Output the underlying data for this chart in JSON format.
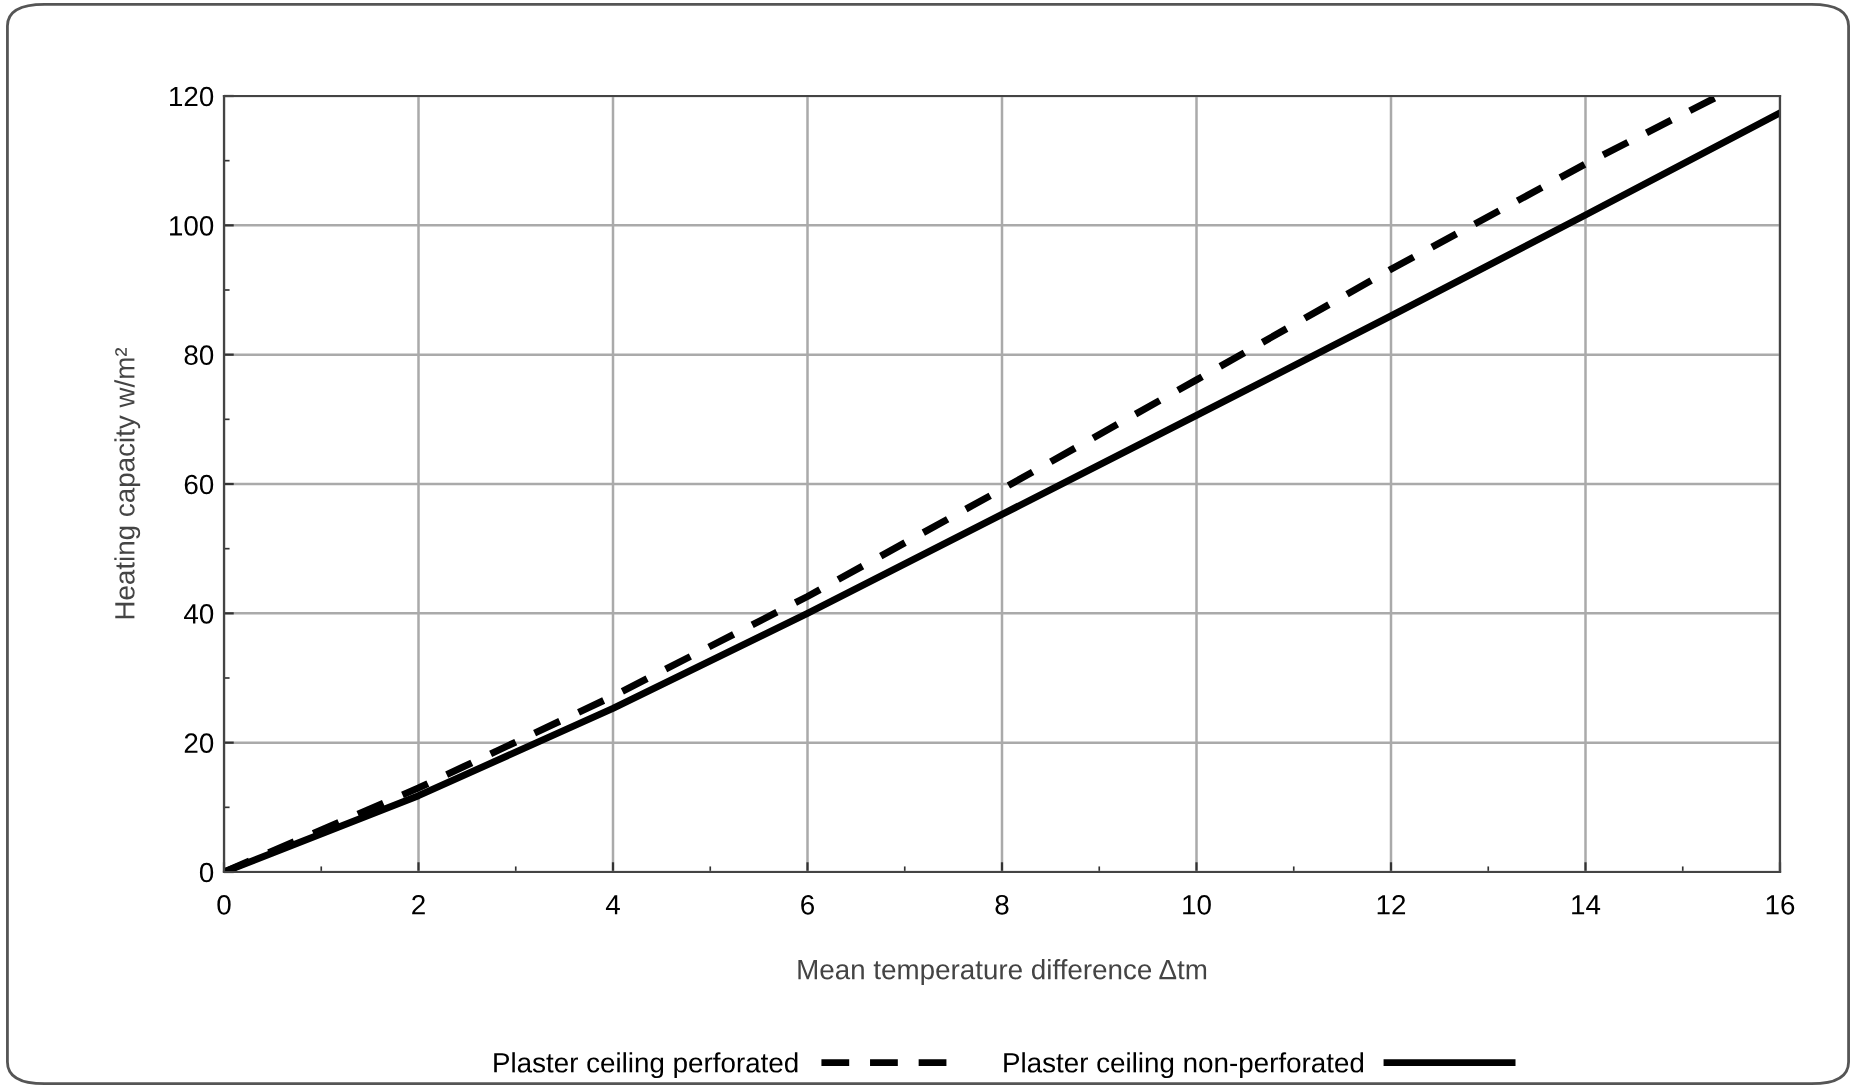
{
  "chart_data": {
    "type": "line",
    "xlabel": "Mean temperature difference Δtm",
    "ylabel": "Heating capacity w/m²",
    "xlim": [
      0,
      16
    ],
    "xticks": [
      0,
      2,
      4,
      6,
      8,
      10,
      12,
      14,
      16
    ],
    "ylim": [
      0,
      120
    ],
    "yticks": [
      0,
      20,
      40,
      60,
      80,
      100,
      120
    ],
    "grid": true,
    "legend": "bottom",
    "series": [
      {
        "name": "Plaster ceiling perforated",
        "color": "#000000",
        "line_style": "dashed",
        "x": [
          0,
          2,
          4,
          6,
          8,
          10,
          12,
          14,
          15.37
        ],
        "values": [
          0,
          13,
          27.2,
          42.6,
          59.2,
          76.1,
          93.2,
          109.5,
          120
        ]
      },
      {
        "name": "Plaster ceiling non-perforated",
        "color": "#000000",
        "line_style": "solid",
        "x": [
          0,
          2,
          4,
          6,
          8,
          10,
          12,
          14,
          16
        ],
        "values": [
          0,
          11.8,
          25.3,
          40,
          55.3,
          70.6,
          86,
          101.6,
          117.4
        ]
      }
    ]
  }
}
